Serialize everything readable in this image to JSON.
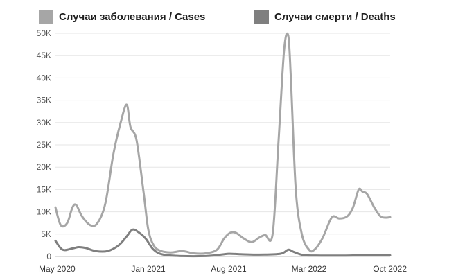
{
  "chart_data": {
    "type": "line",
    "title": "",
    "xlabel": "",
    "ylabel": "",
    "ylim": [
      0,
      50000
    ],
    "yticks": [
      0,
      5000,
      10000,
      15000,
      20000,
      25000,
      30000,
      35000,
      40000,
      45000,
      50000
    ],
    "ytick_labels": [
      "0",
      "5K",
      "10K",
      "15K",
      "20K",
      "25K",
      "30K",
      "35K",
      "40K",
      "45K",
      "50K"
    ],
    "xlim": [
      "2020-05-01",
      "2022-10-01"
    ],
    "xticks": [
      "2020-05-01",
      "2021-01-01",
      "2021-08-01",
      "2022-03-01",
      "2022-10-01"
    ],
    "xtick_labels": [
      "May 2020",
      "Jan 2021",
      "Aug 2021",
      "Mar 2022",
      "Oct 2022"
    ],
    "grid": true,
    "legend_position": "top",
    "series": [
      {
        "name": "Случаи заболевания / Cases",
        "color": "#a6a6a6",
        "points": [
          [
            "2020-05-01",
            11000
          ],
          [
            "2020-05-15",
            7000
          ],
          [
            "2020-06-01",
            7500
          ],
          [
            "2020-06-15",
            11000
          ],
          [
            "2020-06-25",
            11500
          ],
          [
            "2020-07-10",
            9000
          ],
          [
            "2020-08-01",
            7000
          ],
          [
            "2020-08-20",
            7500
          ],
          [
            "2020-09-10",
            12000
          ],
          [
            "2020-10-01",
            23000
          ],
          [
            "2020-10-20",
            30000
          ],
          [
            "2020-11-05",
            34000
          ],
          [
            "2020-11-15",
            29000
          ],
          [
            "2020-12-01",
            26000
          ],
          [
            "2020-12-20",
            14000
          ],
          [
            "2021-01-01",
            6000
          ],
          [
            "2021-01-15",
            2500
          ],
          [
            "2021-02-01",
            1300
          ],
          [
            "2021-03-01",
            900
          ],
          [
            "2021-04-01",
            1200
          ],
          [
            "2021-05-01",
            700
          ],
          [
            "2021-06-01",
            700
          ],
          [
            "2021-07-01",
            1500
          ],
          [
            "2021-07-20",
            4000
          ],
          [
            "2021-08-05",
            5300
          ],
          [
            "2021-08-20",
            5300
          ],
          [
            "2021-09-10",
            4000
          ],
          [
            "2021-10-01",
            3200
          ],
          [
            "2021-10-20",
            4200
          ],
          [
            "2021-11-05",
            4800
          ],
          [
            "2021-11-25",
            5000
          ],
          [
            "2021-12-10",
            25000
          ],
          [
            "2021-12-25",
            46000
          ],
          [
            "2022-01-05",
            49500
          ],
          [
            "2022-01-12",
            40000
          ],
          [
            "2022-01-25",
            15000
          ],
          [
            "2022-02-10",
            5000
          ],
          [
            "2022-03-01",
            1500
          ],
          [
            "2022-03-15",
            1500
          ],
          [
            "2022-04-05",
            4000
          ],
          [
            "2022-04-25",
            8000
          ],
          [
            "2022-05-05",
            9000
          ],
          [
            "2022-05-20",
            8500
          ],
          [
            "2022-06-10",
            9000
          ],
          [
            "2022-06-25",
            11000
          ],
          [
            "2022-07-10",
            15000
          ],
          [
            "2022-07-20",
            14500
          ],
          [
            "2022-08-01",
            14000
          ],
          [
            "2022-08-20",
            11000
          ],
          [
            "2022-09-05",
            9000
          ],
          [
            "2022-09-20",
            8700
          ],
          [
            "2022-10-01",
            8800
          ]
        ]
      },
      {
        "name": "Случаи смерти / Deaths",
        "color": "#7f7f7f",
        "points": [
          [
            "2020-05-01",
            3500
          ],
          [
            "2020-05-20",
            1500
          ],
          [
            "2020-06-15",
            1800
          ],
          [
            "2020-07-01",
            2100
          ],
          [
            "2020-07-20",
            1900
          ],
          [
            "2020-08-15",
            1200
          ],
          [
            "2020-09-15",
            1200
          ],
          [
            "2020-10-15",
            2500
          ],
          [
            "2020-11-05",
            4500
          ],
          [
            "2020-11-20",
            6000
          ],
          [
            "2020-12-05",
            5500
          ],
          [
            "2020-12-25",
            4000
          ],
          [
            "2021-01-15",
            1500
          ],
          [
            "2021-02-10",
            400
          ],
          [
            "2021-04-01",
            100
          ],
          [
            "2021-06-01",
            100
          ],
          [
            "2021-07-01",
            300
          ],
          [
            "2021-08-01",
            600
          ],
          [
            "2021-09-01",
            500
          ],
          [
            "2021-10-15",
            400
          ],
          [
            "2021-12-15",
            600
          ],
          [
            "2022-01-05",
            1500
          ],
          [
            "2022-01-20",
            1000
          ],
          [
            "2022-02-15",
            300
          ],
          [
            "2022-04-01",
            200
          ],
          [
            "2022-06-01",
            200
          ],
          [
            "2022-08-01",
            300
          ],
          [
            "2022-10-01",
            250
          ]
        ]
      }
    ]
  }
}
